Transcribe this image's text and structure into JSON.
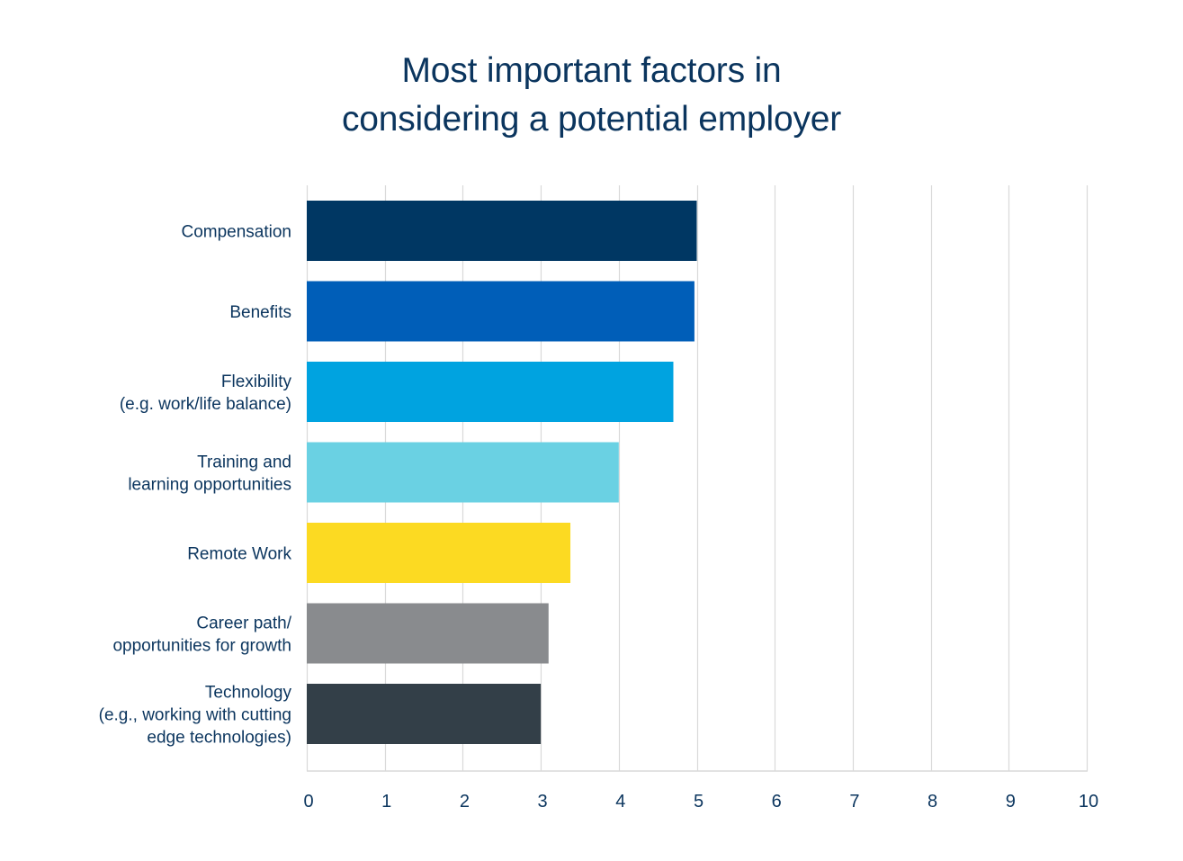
{
  "chart_data": {
    "type": "bar",
    "orientation": "horizontal",
    "title_lines": [
      "Most important factors in",
      "considering a potential employer"
    ],
    "categories": [
      [
        "Compensation"
      ],
      [
        "Benefits"
      ],
      [
        "Flexibility",
        "(e.g. work/life balance)"
      ],
      [
        "Training and",
        "learning opportunities"
      ],
      [
        "Remote Work"
      ],
      [
        "Career path/",
        "opportunities for growth"
      ],
      [
        "Technology",
        "(e.g., working with cutting",
        "edge technologies)"
      ]
    ],
    "values": [
      5.0,
      4.97,
      4.7,
      4.0,
      3.38,
      3.1,
      3.0
    ],
    "colors": [
      "#003763",
      "#005eb8",
      "#00a3e0",
      "#6ad1e3",
      "#fcda22",
      "#898b8e",
      "#333f48"
    ],
    "xlim": [
      0,
      10
    ],
    "xticks": [
      "0",
      "1",
      "2",
      "3",
      "4",
      "5",
      "6",
      "7",
      "8",
      "9",
      "10"
    ],
    "grid": true,
    "legend": "none",
    "text_color": "#0b355e",
    "grid_color": "#d9d9d9"
  }
}
